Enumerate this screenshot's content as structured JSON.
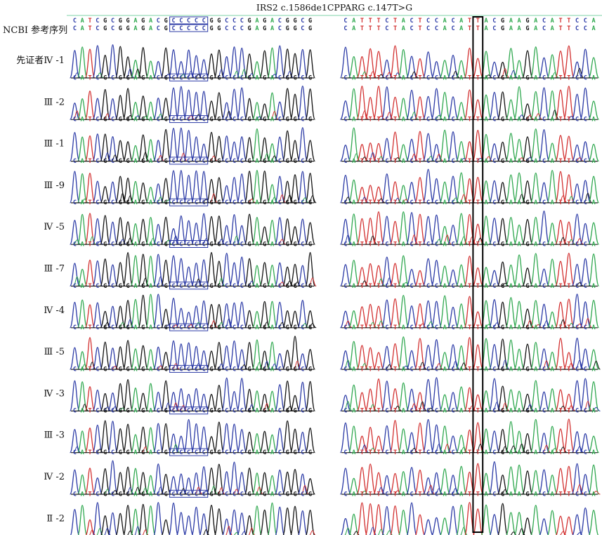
{
  "header": {
    "title": "IRS2 c.1586de1CPPARG c.147T>G"
  },
  "reference_label": "NCBI 参考序列",
  "left_panel": {
    "gene": "IRS2",
    "sequence": "CATCGCGGAGACGCCCCCGGCCCGAGACGGCG",
    "box_start": 13,
    "box_length": 5
  },
  "right_panel": {
    "gene": "PPARG",
    "sequence": "CATTTCTACTCCACATTACGAAGACATTCCA",
    "highlight_column": 16
  },
  "rows": [
    {
      "label": "先证者Ⅳ -1"
    },
    {
      "label": "Ⅲ -2"
    },
    {
      "label": "Ⅲ -1"
    },
    {
      "label": "Ⅲ -9"
    },
    {
      "label": "Ⅳ -5"
    },
    {
      "label": "Ⅲ -7"
    },
    {
      "label": "Ⅳ -4"
    },
    {
      "label": "Ⅲ -5"
    },
    {
      "label": "Ⅳ -3"
    },
    {
      "label": "Ⅲ -3"
    },
    {
      "label": "Ⅳ -2"
    },
    {
      "label": "Ⅱ -2"
    }
  ],
  "colors": {
    "A": "#2fa84f",
    "C": "#2b3aa6",
    "G": "#111111",
    "T": "#d23030",
    "header_line": "#7fd3a8",
    "box": "#2b3aa6",
    "highlight": "#000000"
  }
}
